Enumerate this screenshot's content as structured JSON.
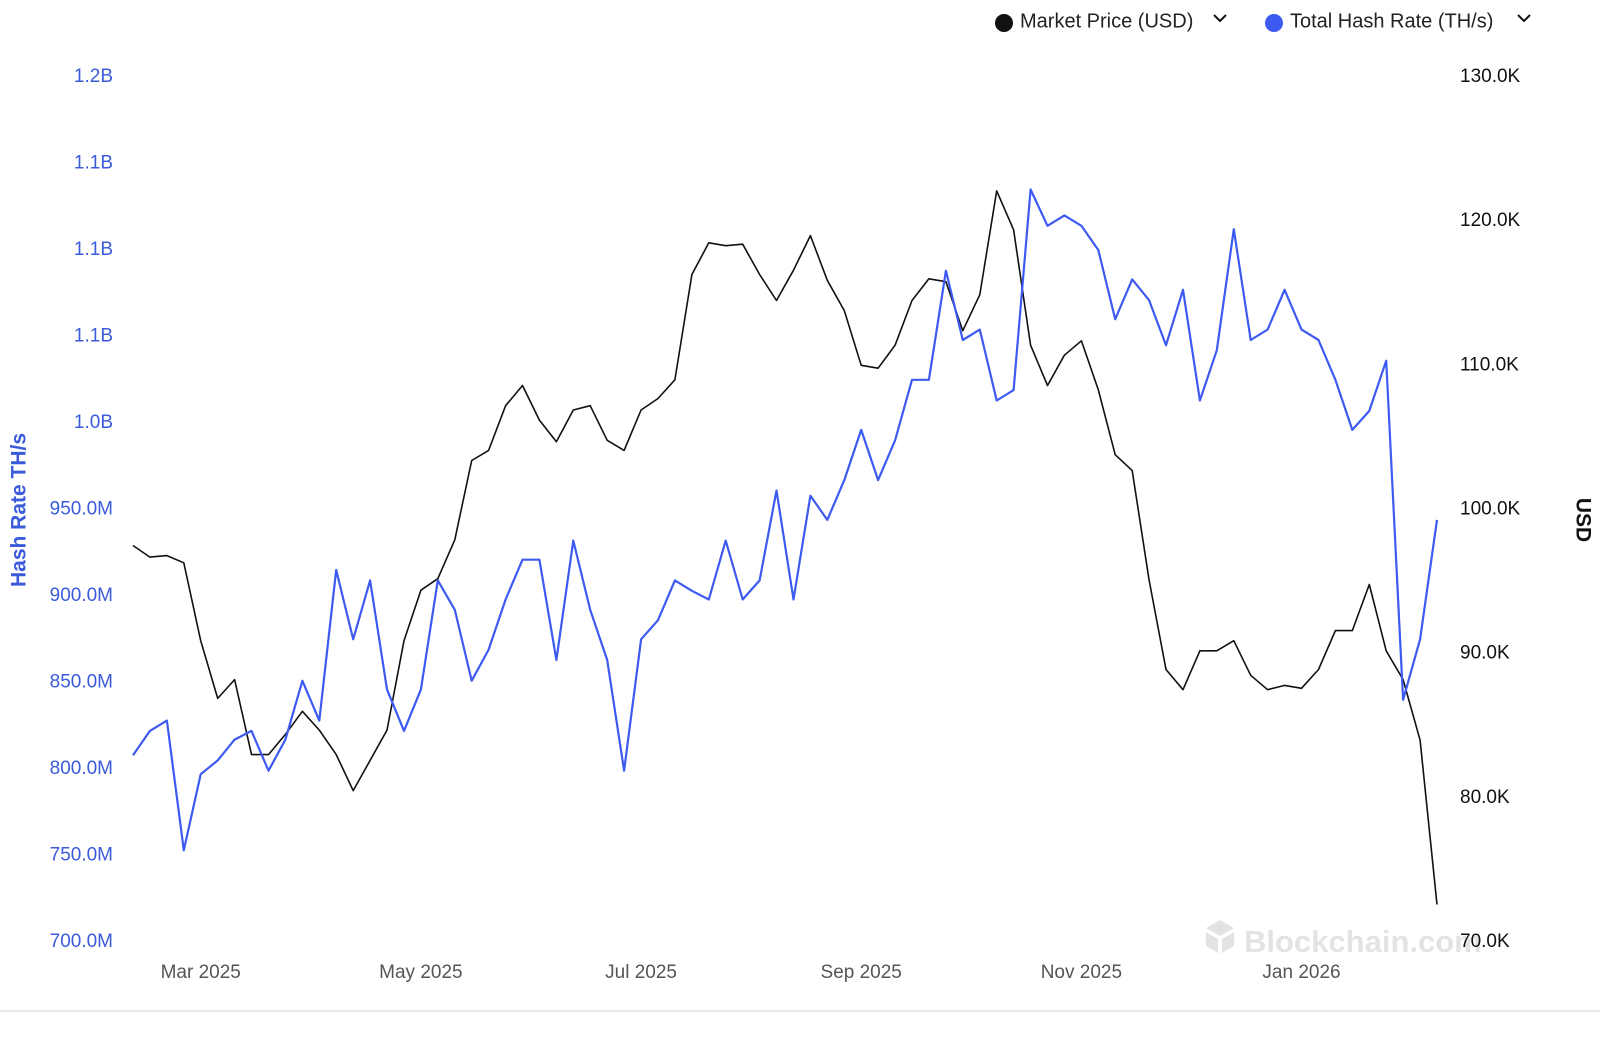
{
  "chart_data": {
    "type": "line",
    "legend": [
      "Market Price (USD)",
      "Total Hash Rate (TH/s)"
    ],
    "ylabel": "Hash Rate TH/s",
    "y2label": "USD",
    "watermark": "Blockchain.com",
    "categories": [
      null,
      null,
      null,
      null,
      "Mar 2025",
      null,
      null,
      null,
      null,
      null,
      null,
      null,
      null,
      null,
      null,
      null,
      null,
      "May 2025",
      null,
      null,
      null,
      null,
      null,
      null,
      null,
      null,
      null,
      null,
      null,
      null,
      "Jul 2025",
      null,
      null,
      null,
      null,
      null,
      null,
      null,
      null,
      null,
      null,
      null,
      null,
      "Sep 2025",
      null,
      null,
      null,
      null,
      null,
      null,
      null,
      null,
      null,
      null,
      null,
      null,
      "Nov 2025",
      null,
      null,
      null,
      null,
      null,
      null,
      null,
      null,
      null,
      null,
      null,
      null,
      "Jan 2026",
      null,
      null,
      null,
      null,
      null,
      null,
      null,
      null
    ],
    "ylim": [
      700000000,
      1200000000
    ],
    "yticks": [
      {
        "value": 700000000,
        "label": "700.0M"
      },
      {
        "value": 750000000,
        "label": "750.0M"
      },
      {
        "value": 800000000,
        "label": "800.0M"
      },
      {
        "value": 850000000,
        "label": "850.0M"
      },
      {
        "value": 900000000,
        "label": "900.0M"
      },
      {
        "value": 950000000,
        "label": "950.0M"
      },
      {
        "value": 1000000000,
        "label": "1.0B"
      },
      {
        "value": 1050000000,
        "label": "1.1B"
      },
      {
        "value": 1100000000,
        "label": "1.1B"
      },
      {
        "value": 1150000000,
        "label": "1.1B"
      },
      {
        "value": 1200000000,
        "label": "1.2B"
      }
    ],
    "y2lim": [
      70000,
      130000
    ],
    "y2ticks": [
      {
        "value": 70000,
        "label": "70.0K"
      },
      {
        "value": 80000,
        "label": "80.0K"
      },
      {
        "value": 90000,
        "label": "90.0K"
      },
      {
        "value": 100000,
        "label": "100.0K"
      },
      {
        "value": 110000,
        "label": "110.0K"
      },
      {
        "value": 120000,
        "label": "120.0K"
      },
      {
        "value": 130000,
        "label": "130.0K"
      }
    ],
    "series": [
      {
        "name": "Market Price (USD)",
        "color": "#111111",
        "axis": "y2",
        "values": [
          97500,
          96700,
          96800,
          96300,
          90900,
          86900,
          88200,
          83000,
          83000,
          84400,
          86000,
          84700,
          83000,
          80500,
          82600,
          84700,
          90900,
          94400,
          95200,
          97900,
          103400,
          104100,
          107200,
          108600,
          106200,
          104700,
          106900,
          107200,
          104800,
          104100,
          106900,
          107700,
          109000,
          116300,
          118500,
          118300,
          118400,
          116300,
          114500,
          116600,
          119000,
          115900,
          113800,
          110000,
          109800,
          111400,
          114500,
          116000,
          115800,
          112400,
          114900,
          122100,
          119400,
          111400,
          108600,
          110700,
          111700,
          108300,
          103800,
          102700,
          95100,
          88900,
          87500,
          90200,
          90200,
          90900,
          88500,
          87500,
          87800,
          87600,
          88900,
          91600,
          91600,
          94800,
          90200,
          88200,
          84000,
          72600
        ]
      },
      {
        "name": "Total Hash Rate (TH/s)",
        "color": "#3d5af1",
        "axis": "y",
        "values": [
          808000000,
          822000000,
          828000000,
          753000000,
          797000000,
          805000000,
          817000000,
          822000000,
          799000000,
          817000000,
          851000000,
          828000000,
          915000000,
          875000000,
          909000000,
          846000000,
          822000000,
          846000000,
          909000000,
          892000000,
          851000000,
          869000000,
          898000000,
          921000000,
          921000000,
          863000000,
          932000000,
          892000000,
          863000000,
          799000000,
          875000000,
          886000000,
          909000000,
          903000000,
          898000000,
          932000000,
          898000000,
          909000000,
          961000000,
          898000000,
          958000000,
          944000000,
          967000000,
          996000000,
          967000000,
          990000000,
          1025000000,
          1025000000,
          1088000000,
          1048000000,
          1054000000,
          1013000000,
          1019000000,
          1135000000,
          1114000000,
          1120000000,
          1114000000,
          1100000000,
          1060000000,
          1083000000,
          1071000000,
          1045000000,
          1077000000,
          1013000000,
          1042000000,
          1112000000,
          1048000000,
          1054000000,
          1077000000,
          1054000000,
          1048000000,
          1025000000,
          996000000,
          1007000000,
          1036000000,
          840000000,
          875000000,
          944000000
        ]
      }
    ]
  }
}
